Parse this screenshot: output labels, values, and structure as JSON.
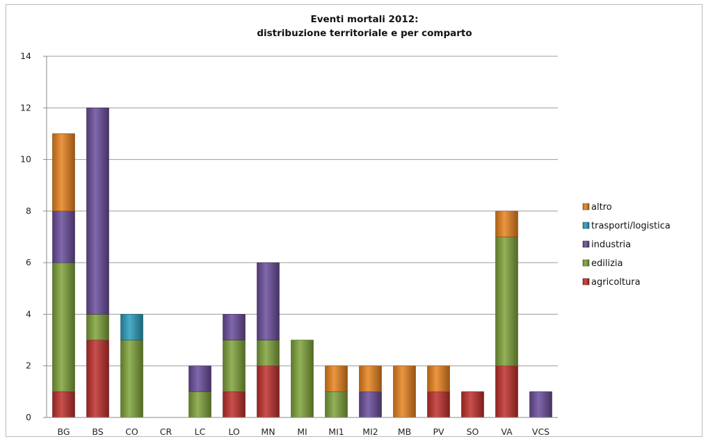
{
  "chart_data": {
    "type": "bar",
    "stacked": true,
    "title": "Eventi mortali 2012:",
    "subtitle": "distribuzione territoriale e per comparto",
    "xlabel": "",
    "ylabel": "",
    "ylim": [
      0,
      14
    ],
    "yticks": [
      0,
      2,
      4,
      6,
      8,
      10,
      12,
      14
    ],
    "grid": true,
    "legend_position": "right",
    "categories": [
      "BG",
      "BS",
      "CO",
      "CR",
      "LC",
      "LO",
      "MN",
      "MI",
      "MI1",
      "MI2",
      "MB",
      "PV",
      "SO",
      "VA",
      "VCS"
    ],
    "series": [
      {
        "name": "agricoltura",
        "color": "#c0302c",
        "values": [
          1,
          3,
          0,
          0,
          0,
          1,
          2,
          0,
          0,
          0,
          0,
          1,
          1,
          2,
          0
        ]
      },
      {
        "name": "edilizia",
        "color": "#7fa33a",
        "values": [
          5,
          1,
          3,
          0,
          1,
          2,
          1,
          3,
          1,
          0,
          0,
          0,
          0,
          5,
          0
        ]
      },
      {
        "name": "industria",
        "color": "#6a4d9c",
        "values": [
          2,
          8,
          0,
          0,
          1,
          1,
          3,
          0,
          0,
          1,
          0,
          0,
          0,
          0,
          1
        ]
      },
      {
        "name": "trasporti/logistica",
        "color": "#2a9dbd",
        "values": [
          0,
          0,
          1,
          0,
          0,
          0,
          0,
          0,
          0,
          0,
          0,
          0,
          0,
          0,
          0
        ]
      },
      {
        "name": "altro",
        "color": "#e8821e",
        "values": [
          3,
          0,
          0,
          0,
          0,
          0,
          0,
          0,
          1,
          1,
          2,
          1,
          0,
          1,
          0
        ]
      }
    ]
  }
}
